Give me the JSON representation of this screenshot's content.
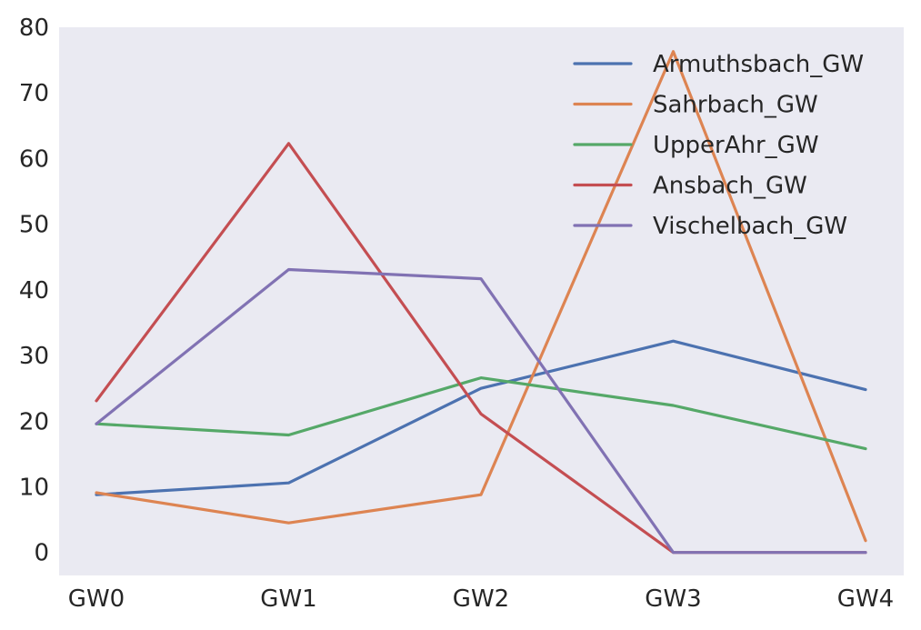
{
  "chart_data": {
    "type": "line",
    "title": "",
    "xlabel": "",
    "ylabel": "",
    "categories": [
      "GW0",
      "GW1",
      "GW2",
      "GW3",
      "GW4"
    ],
    "ylim": [
      -3.5,
      80
    ],
    "yticks": [
      0,
      10,
      20,
      30,
      40,
      50,
      60,
      70,
      80
    ],
    "grid": false,
    "legend_position": "top-right",
    "background": "#eaeaf2",
    "series": [
      {
        "name": "Armuthsbach_GW",
        "color": "#4c72b0",
        "values": [
          8.8,
          10.6,
          25.0,
          32.2,
          24.8
        ]
      },
      {
        "name": "Sahrbach_GW",
        "color": "#dd8452",
        "values": [
          9.1,
          4.5,
          8.8,
          76.3,
          1.8
        ]
      },
      {
        "name": "UpperAhr_GW",
        "color": "#55a868",
        "values": [
          19.6,
          17.9,
          26.6,
          22.4,
          15.8
        ]
      },
      {
        "name": "Ansbach_GW",
        "color": "#c44e52",
        "values": [
          23.1,
          62.3,
          21.1,
          0.0,
          0.0
        ]
      },
      {
        "name": "Vischelbach_GW",
        "color": "#8172b3",
        "values": [
          19.6,
          43.1,
          41.7,
          0.0,
          0.0
        ]
      }
    ]
  }
}
